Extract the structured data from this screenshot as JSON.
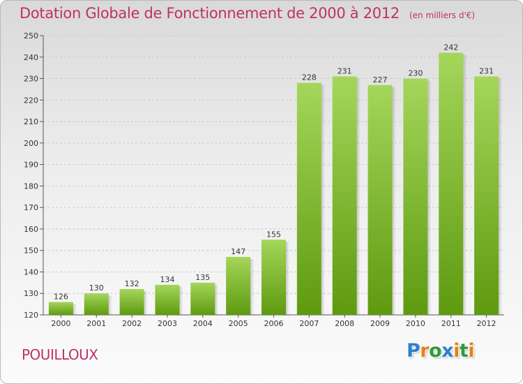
{
  "chart_title": "Dotation Globale de Fonctionnement de 2000 à 2012",
  "chart_unit": "(en milliers d'€)",
  "commune": "POUILLOUX",
  "logo_text": "Proxiti",
  "colors": {
    "title": "#c0306a",
    "bar_top": "#a4d65a",
    "bar_bottom": "#5e9a10",
    "grid": "#c9c9c9",
    "axis": "#555555"
  },
  "chart_data": {
    "type": "bar",
    "title": "Dotation Globale de Fonctionnement de 2000 à 2012",
    "categories": [
      "2000",
      "2001",
      "2002",
      "2003",
      "2004",
      "2005",
      "2006",
      "2007",
      "2008",
      "2009",
      "2010",
      "2011",
      "2012"
    ],
    "values": [
      126,
      130,
      132,
      134,
      135,
      147,
      155,
      228,
      231,
      227,
      230,
      242,
      231
    ],
    "xlabel": "",
    "ylabel": "",
    "ylim": [
      120,
      250
    ],
    "yticks": [
      120,
      130,
      140,
      150,
      160,
      170,
      180,
      190,
      200,
      210,
      220,
      230,
      240,
      250
    ],
    "grid": true,
    "value_labels": true
  }
}
